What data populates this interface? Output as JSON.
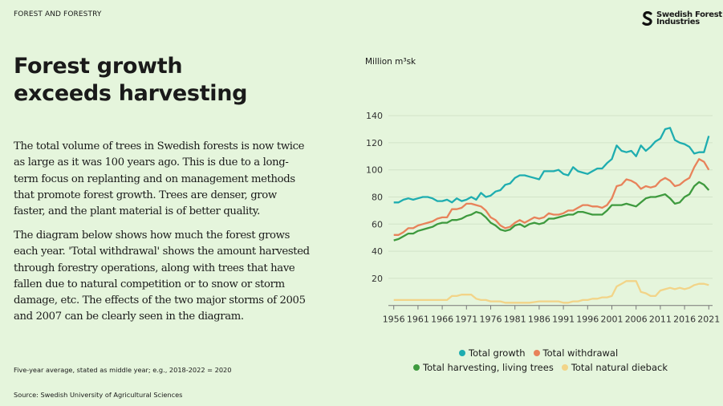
{
  "header": {
    "kicker": "FOREST AND FORESTRY",
    "logo_text_line1": "Swedish Forest",
    "logo_text_line2": "Industries"
  },
  "title_line1": "Forest growth",
  "title_line2": "exceeds harvesting",
  "paragraphs": [
    "The total volume of trees in Swedish forests is now twice as large as it was 100 years ago. This is due to a long-term focus on replanting and on management methods that promote forest growth. Trees are denser, grow faster, and the plant material is of better quality.",
    "The diagram below shows how much the forest grows each year. 'Total withdrawal' shows the amount harvested through forestry operations, along with trees that have fallen due to natural competition or to snow or storm damage, etc. The effects of the two major storms of 2005 and 2007 can be clearly seen in the diagram."
  ],
  "note": "Five-year average, stated as middle year; e.g., 2018-2022 = 2020",
  "source": "Source: Swedish University of Agricultural Sciences",
  "chart_data": {
    "type": "line",
    "ylabel": "Million m³sk",
    "ylim": [
      0,
      140
    ],
    "yticks": [
      "20",
      "40",
      "60",
      "80",
      "100",
      "120",
      "140"
    ],
    "xticks": [
      "1956",
      "1961",
      "1966",
      "1971",
      "1976",
      "1981",
      "1986",
      "1991",
      "1996",
      "2001",
      "2006",
      "2011",
      "2016",
      "2021"
    ],
    "grid": true,
    "legend_position": "bottom",
    "x_start": 1956,
    "x_end": 2021,
    "series": [
      {
        "name": "Total growth",
        "color": "#1eadb0",
        "values": [
          76,
          76,
          78,
          79,
          78,
          79,
          80,
          80,
          79,
          77,
          77,
          78,
          76,
          79,
          77,
          78,
          80,
          78,
          83,
          80,
          81,
          84,
          85,
          89,
          90,
          94,
          96,
          96,
          95,
          94,
          93,
          99,
          99,
          99,
          100,
          97,
          96,
          102,
          99,
          98,
          97,
          99,
          101,
          101,
          105,
          108,
          118,
          114,
          113,
          114,
          110,
          118,
          114,
          117,
          121,
          123,
          130,
          131,
          122,
          120,
          119,
          117,
          112,
          113,
          113,
          125
        ]
      },
      {
        "name": "Total withdrawal",
        "color": "#e8825a",
        "values": [
          52,
          52,
          54,
          57,
          57,
          59,
          60,
          61,
          62,
          64,
          65,
          65,
          71,
          71,
          72,
          75,
          75,
          74,
          73,
          70,
          65,
          63,
          59,
          57,
          58,
          61,
          63,
          61,
          63,
          65,
          64,
          65,
          68,
          67,
          67,
          68,
          70,
          70,
          72,
          74,
          74,
          73,
          73,
          72,
          74,
          79,
          88,
          89,
          93,
          92,
          90,
          86,
          88,
          87,
          88,
          92,
          94,
          92,
          88,
          89,
          92,
          94,
          102,
          108,
          106,
          100
        ]
      },
      {
        "name": "Total harvesting, living trees",
        "color": "#3e9a3e",
        "values": [
          48,
          49,
          51,
          53,
          53,
          55,
          56,
          57,
          58,
          60,
          61,
          61,
          63,
          63,
          64,
          66,
          67,
          69,
          68,
          65,
          61,
          59,
          56,
          55,
          56,
          59,
          60,
          58,
          60,
          61,
          60,
          61,
          64,
          64,
          65,
          66,
          67,
          67,
          69,
          69,
          68,
          67,
          67,
          67,
          70,
          74,
          74,
          74,
          75,
          74,
          73,
          76,
          79,
          80,
          80,
          81,
          82,
          79,
          75,
          76,
          80,
          82,
          88,
          91,
          89,
          85
        ]
      },
      {
        "name": "Total natural dieback",
        "color": "#f2d488",
        "values": [
          4,
          4,
          4,
          4,
          4,
          4,
          4,
          4,
          4,
          4,
          4,
          4,
          7,
          7,
          8,
          8,
          8,
          5,
          4,
          4,
          3,
          3,
          3,
          2,
          2,
          2,
          2,
          2,
          2,
          2.5,
          3,
          3,
          3,
          3,
          3,
          2,
          2,
          3,
          3,
          4,
          4,
          5,
          5,
          6,
          6,
          7,
          14,
          16,
          18,
          18,
          18,
          10,
          9,
          7,
          7,
          11,
          12,
          13,
          12,
          13,
          12,
          13,
          15,
          16,
          16,
          15
        ]
      }
    ]
  }
}
